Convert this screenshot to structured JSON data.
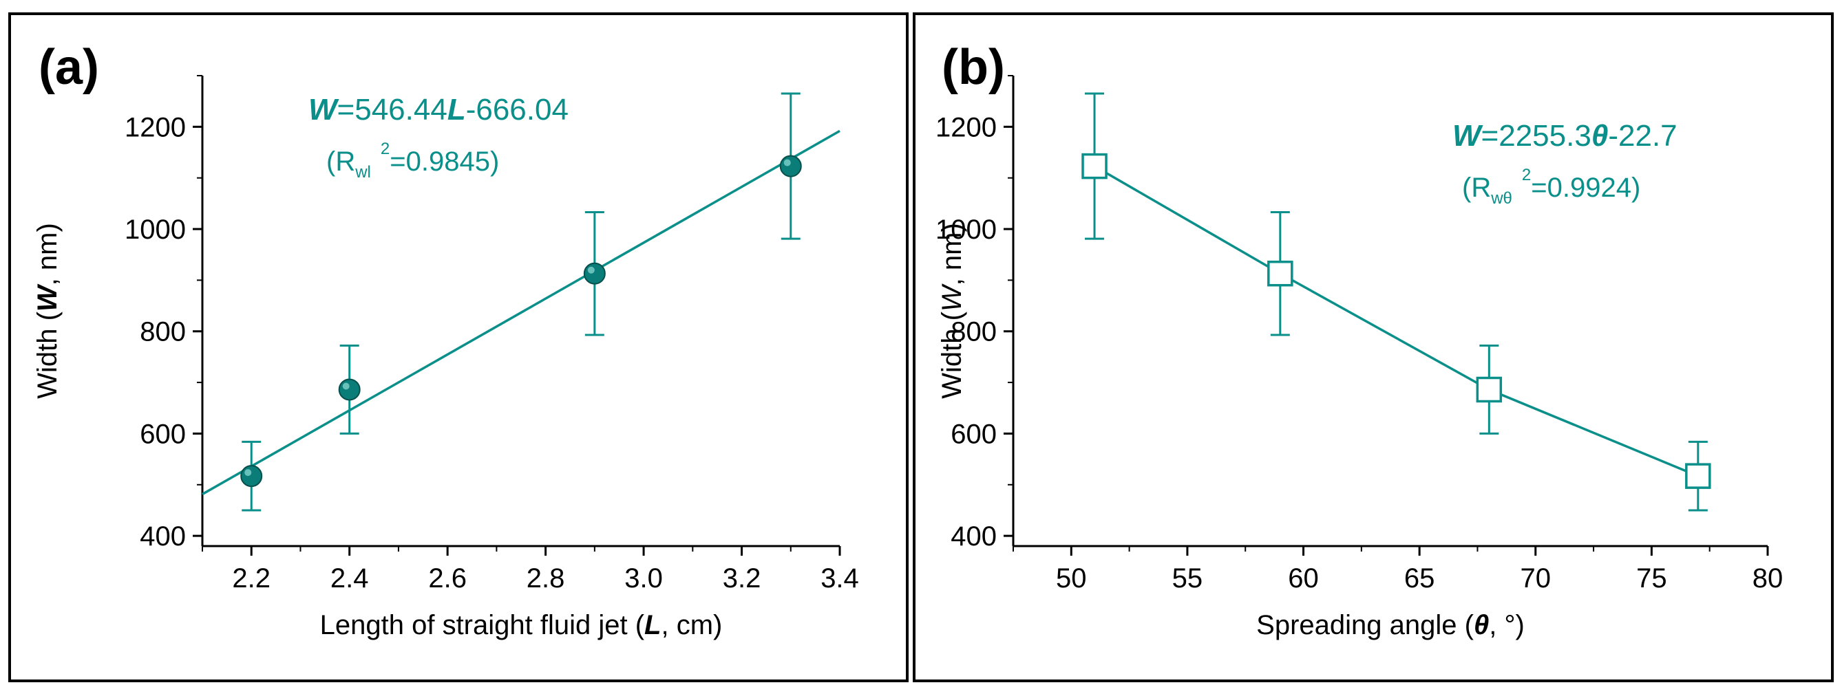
{
  "colors": {
    "teal": "#0a8f8a",
    "marker": "#0b7d78",
    "axis": "#000000"
  },
  "chart_data": [
    {
      "type": "scatter",
      "panel_label": "(a)",
      "title": "",
      "xlabel": {
        "prefix": "Length of straight fluid jet (",
        "sym": "L",
        "suffix": ", cm)"
      },
      "ylabel": {
        "prefix": "Width (",
        "sym": "W",
        "suffix": ", nm)"
      },
      "xlim": [
        2.1,
        3.4
      ],
      "ylim": [
        380,
        1300
      ],
      "xticks": [
        2.2,
        2.4,
        2.6,
        2.8,
        3.0,
        3.2,
        3.4
      ],
      "xtick_labels": [
        "2.2",
        "2.4",
        "2.6",
        "2.8",
        "3.0",
        "3.2",
        "3.4"
      ],
      "yticks": [
        400,
        600,
        800,
        1000,
        1200
      ],
      "ytick_labels": [
        "400",
        "600",
        "800",
        "1000",
        "1200"
      ],
      "marker": "filled-circle",
      "points": [
        {
          "x": 2.2,
          "y": 517,
          "err": 67
        },
        {
          "x": 2.4,
          "y": 686,
          "err": 86
        },
        {
          "x": 2.9,
          "y": 913,
          "err": 120
        },
        {
          "x": 3.3,
          "y": 1123,
          "err": 142
        }
      ],
      "fit": {
        "slope": 546.44,
        "intercept": -666.04,
        "x_range": [
          2.1,
          3.4
        ]
      },
      "annotation": {
        "sym": "W",
        "eq1": "=546.44",
        "sym2": "L",
        "eq2": "-666.04",
        "r_open": "(R",
        "r_sub": "wl",
        "r_sup": "2",
        "r_close": "=0.9845)"
      }
    },
    {
      "type": "line",
      "panel_label": "(b)",
      "title": "",
      "xlabel": {
        "prefix": "Spreading angle (",
        "sym": "θ",
        "suffix": ", °)"
      },
      "ylabel": {
        "prefix": "Width (",
        "sym": "W",
        "suffix": ", nm)"
      },
      "xlim": [
        47.5,
        80
      ],
      "ylim": [
        380,
        1300
      ],
      "xticks": [
        50,
        55,
        60,
        65,
        70,
        75,
        80
      ],
      "xtick_labels": [
        "50",
        "55",
        "60",
        "65",
        "70",
        "75",
        "80"
      ],
      "yticks": [
        400,
        600,
        800,
        1000,
        1200
      ],
      "ytick_labels": [
        "400",
        "600",
        "800",
        "1000",
        "1200"
      ],
      "marker": "open-square",
      "points": [
        {
          "x": 51,
          "y": 1123,
          "err": 142
        },
        {
          "x": 59,
          "y": 913,
          "err": 120
        },
        {
          "x": 68,
          "y": 686,
          "err": 86
        },
        {
          "x": 77,
          "y": 517,
          "err": 67
        }
      ],
      "annotation": {
        "sym": "W",
        "eq1": "=2255.3",
        "sym2": "θ",
        "eq2": "-22.7",
        "r_open": "(R",
        "r_sub": "wθ",
        "r_sup": "2",
        "r_close": "=0.9924)"
      }
    }
  ]
}
